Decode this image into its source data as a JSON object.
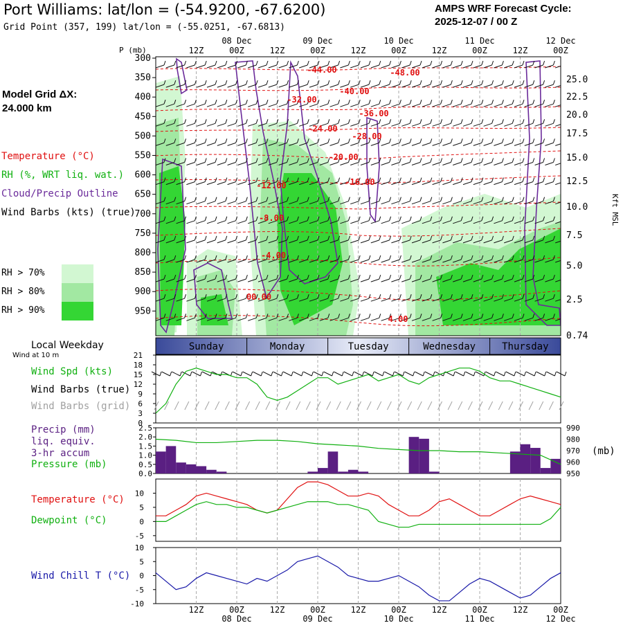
{
  "header": {
    "title": "Port Williams:  lat/lon = (-54.9200, -67.6200)",
    "grid_point": "Grid Point (357, 199) lat/lon = (-55.0251, -67.6813)",
    "cycle_line1": "AMPS WRF Forecast Cycle:",
    "cycle_line2": "2025-12-07 / 00  Z"
  },
  "side": {
    "model_grid_label": "Model Grid ΔX:",
    "model_grid_value": " 24.000 km",
    "temperature": "Temperature (°C)",
    "rh": "RH (%, WRT liq. wat.)",
    "cloud": "Cloud/Precip Outline",
    "wind_barbs": "Wind Barbs (kts) (true)",
    "rh70": "RH > 70%",
    "rh80": "RH > 80%",
    "rh90": "RH > 90%",
    "local_weekday": "Local Weekday",
    "wind_10m": "Wind at 10 m",
    "wind_spd": "Wind Spd (kts)",
    "wind_barbs_true": "Wind Barbs (true)",
    "wind_barbs_grid": "Wind Barbs (grid)",
    "precip": "Precip (mm)",
    "liq_equiv": "liq. equiv.",
    "accum": "3-hr accum",
    "pressure": "Pressure (mb)",
    "temperature2": "Temperature (°C)",
    "dewpoint": "Dewpoint (°C)",
    "wind_chill": "Wind Chill T (°C)"
  },
  "colors": {
    "temperature": "#e01010",
    "rh_label": "#10b010",
    "cloud": "#6a2a9a",
    "rh70": "#d2f7d2",
    "rh80": "#a2e8a2",
    "rh90": "#34d634",
    "precip_bar": "#5a1f82",
    "wind_chill": "#1818a8",
    "grid_barbs": "#a0a0a0"
  },
  "chart_data": [
    {
      "type": "heatmap",
      "name": "vertical cross-section",
      "ylabel": "P (mb)",
      "y2label": "Kft MSL",
      "pressure_ticks": [
        "300",
        "350",
        "400",
        "450",
        "500",
        "550",
        "600",
        "650",
        "700",
        "750",
        "800",
        "850",
        "900",
        "950"
      ],
      "kft_ticks": [
        "25.0",
        "22.5",
        "20.0",
        "17.5",
        "15.0",
        "12.5",
        "10.0",
        "7.5",
        "5.0",
        "2.5",
        "0.74"
      ],
      "x_hours": [
        0,
        120
      ],
      "x_top_ticks": [
        "12Z",
        "00Z",
        "12Z",
        "00Z",
        "12Z",
        "00Z",
        "12Z",
        "00Z",
        "12Z",
        "00Z"
      ],
      "date_labels": [
        "08 Dec",
        "09 Dec",
        "10 Dec",
        "11 Dec",
        "12 Dec"
      ],
      "temperature_labels": [
        "-44.00",
        "-48.00",
        "-40.00",
        "-32.00",
        "-36.00",
        "-24.00",
        "-28.00",
        "-20.00",
        "-16.00",
        "-12.00",
        "-8.00",
        "-4.00",
        "00.00",
        "4.00"
      ]
    },
    {
      "type": "line",
      "name": "wind speed",
      "ylabel": "Wind Spd (kts)",
      "yticks": [
        "21",
        "18",
        "15",
        "12",
        "9",
        "6",
        "3",
        "0"
      ],
      "ylim": [
        0,
        21
      ],
      "x": [
        0,
        3,
        6,
        9,
        12,
        15,
        18,
        21,
        24,
        27,
        30,
        33,
        36,
        39,
        42,
        45,
        48,
        51,
        54,
        57,
        60,
        63,
        66,
        69,
        72,
        75,
        78,
        81,
        84,
        87,
        90,
        93,
        96,
        99,
        102,
        105,
        108,
        111,
        114,
        117,
        120
      ],
      "values": [
        3,
        6,
        12,
        16,
        17,
        16,
        15,
        15,
        14,
        14,
        12,
        8,
        7,
        8,
        10,
        12,
        14,
        14,
        12,
        13,
        14,
        15,
        13,
        14,
        15,
        13,
        12,
        14,
        15,
        16,
        17,
        17,
        16,
        14,
        13,
        13,
        12,
        11,
        10,
        9,
        8
      ]
    },
    {
      "type": "bar",
      "name": "precip and pressure",
      "ylabel": "Precip (mm)",
      "y2label": "(mb)",
      "yticks": [
        "2.5",
        "2.0",
        "1.5",
        "1.0",
        "0.5",
        "0.0"
      ],
      "y2ticks": [
        "990",
        "980",
        "970",
        "960",
        "950"
      ],
      "ylim": [
        0,
        2.5
      ],
      "y2lim": [
        950,
        990
      ],
      "precip_x": [
        3,
        6,
        9,
        12,
        15,
        18,
        21,
        48,
        51,
        54,
        57,
        60,
        63,
        78,
        81,
        84,
        108,
        111,
        114,
        117,
        120
      ],
      "precip_values": [
        1.2,
        1.5,
        0.6,
        0.5,
        0.4,
        0.2,
        0.1,
        0.1,
        0.3,
        1.2,
        0.1,
        0.2,
        0.1,
        2.0,
        1.9,
        0.1,
        1.2,
        1.6,
        1.4,
        0.3,
        0.8
      ],
      "pressure_x": [
        0,
        6,
        12,
        18,
        24,
        30,
        36,
        42,
        48,
        54,
        60,
        66,
        72,
        78,
        84,
        90,
        96,
        102,
        108,
        114,
        120
      ],
      "pressure_values": [
        980,
        979,
        977,
        977,
        978,
        979,
        979,
        978,
        976,
        975,
        974,
        972,
        971,
        970,
        970,
        969,
        969,
        968,
        967,
        966,
        958
      ]
    },
    {
      "type": "line",
      "name": "temperature and dewpoint",
      "yticks": [
        "10",
        "5",
        "0",
        "-5"
      ],
      "ylim": [
        -7,
        15
      ],
      "x": [
        0,
        3,
        6,
        9,
        12,
        15,
        18,
        21,
        24,
        27,
        30,
        33,
        36,
        39,
        42,
        45,
        48,
        51,
        54,
        57,
        60,
        63,
        66,
        69,
        72,
        75,
        78,
        81,
        84,
        87,
        90,
        93,
        96,
        99,
        102,
        105,
        108,
        111,
        114,
        117,
        120
      ],
      "series": [
        {
          "name": "Temperature",
          "values": [
            2,
            2,
            4,
            6,
            9,
            10,
            9,
            8,
            7,
            6,
            4,
            3,
            4,
            8,
            12,
            14,
            14,
            13,
            11,
            9,
            9,
            10,
            9,
            6,
            4,
            2,
            2,
            4,
            7,
            8,
            6,
            4,
            2,
            2,
            4,
            6,
            8,
            9,
            8,
            7,
            6
          ]
        },
        {
          "name": "Dewpoint",
          "values": [
            0,
            0,
            2,
            4,
            6,
            7,
            6,
            6,
            5,
            5,
            4,
            3,
            4,
            5,
            6,
            7,
            7,
            7,
            6,
            6,
            5,
            4,
            0,
            -1,
            -2,
            -2,
            -1,
            -1,
            -1,
            -1,
            -1,
            -1,
            -1,
            -1,
            -1,
            -1,
            -1,
            -1,
            -1,
            1,
            5
          ]
        }
      ]
    },
    {
      "type": "line",
      "name": "wind chill",
      "ylabel": "Wind Chill T (°C)",
      "yticks": [
        "10",
        "5",
        "0",
        "-5",
        "-10"
      ],
      "ylim": [
        -10,
        10
      ],
      "x": [
        0,
        3,
        6,
        9,
        12,
        15,
        18,
        21,
        24,
        27,
        30,
        33,
        36,
        39,
        42,
        45,
        48,
        51,
        54,
        57,
        60,
        63,
        66,
        69,
        72,
        75,
        78,
        81,
        84,
        87,
        90,
        93,
        96,
        99,
        102,
        105,
        108,
        111,
        114,
        117,
        120
      ],
      "values": [
        1,
        -2,
        -5,
        -4,
        -1,
        1,
        0,
        -1,
        -2,
        -3,
        -1,
        -2,
        0,
        2,
        5,
        6,
        7,
        5,
        3,
        0,
        -1,
        -2,
        -2,
        -1,
        0,
        -2,
        -4,
        -7,
        -9,
        -9,
        -6,
        -3,
        -1,
        -2,
        -4,
        -6,
        -8,
        -7,
        -4,
        -1,
        1
      ]
    }
  ],
  "weekdays": [
    "Sunday",
    "Monday",
    "Tuesday",
    "Wednesday",
    "Thursday"
  ],
  "bottom_axis": {
    "ticks": [
      "12Z",
      "00Z",
      "12Z",
      "00Z",
      "12Z",
      "00Z",
      "12Z",
      "00Z",
      "12Z",
      "00Z"
    ],
    "dates": [
      "08 Dec",
      "09 Dec",
      "10 Dec",
      "11 Dec",
      "12 Dec"
    ]
  }
}
